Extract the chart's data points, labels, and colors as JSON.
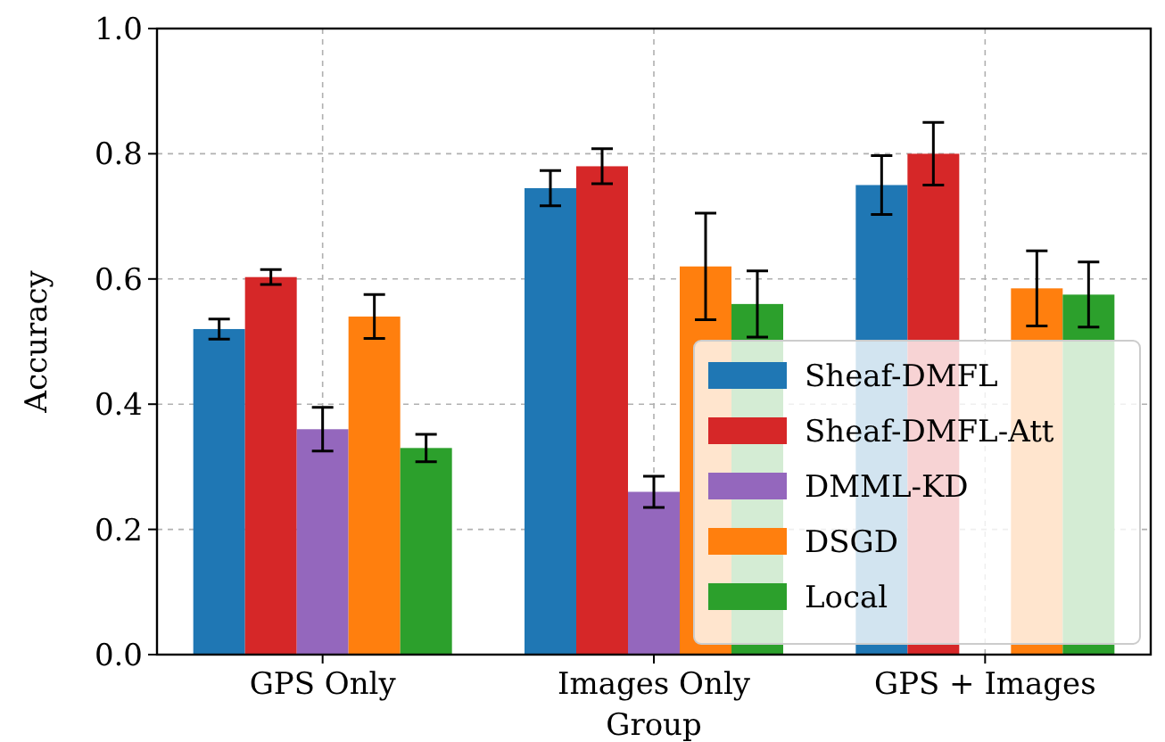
{
  "chart_data": {
    "type": "bar",
    "xlabel": "Group",
    "ylabel": "Accuracy",
    "categories": [
      "GPS Only",
      "Images Only",
      "GPS + Images"
    ],
    "series": [
      {
        "name": "Sheaf-DMFL",
        "color": "#1f77b4",
        "values": [
          0.52,
          0.745,
          0.75
        ],
        "errors": [
          0.016,
          0.028,
          0.047
        ]
      },
      {
        "name": "Sheaf-DMFL-Att",
        "color": "#d62728",
        "values": [
          0.603,
          0.78,
          0.8
        ],
        "errors": [
          0.012,
          0.028,
          0.05
        ]
      },
      {
        "name": "DMML-KD",
        "color": "#9467bd",
        "values": [
          0.36,
          0.26,
          null
        ],
        "errors": [
          0.035,
          0.025,
          null
        ]
      },
      {
        "name": "DSGD",
        "color": "#ff7f0e",
        "values": [
          0.54,
          0.62,
          0.585
        ],
        "errors": [
          0.035,
          0.085,
          0.06
        ]
      },
      {
        "name": "Local",
        "color": "#2ca02c",
        "values": [
          0.33,
          0.56,
          0.575
        ],
        "errors": [
          0.022,
          0.053,
          0.052
        ]
      }
    ],
    "ylim": [
      0,
      1
    ],
    "yticks": [
      {
        "value": 0,
        "label": "0.0"
      },
      {
        "value": 0.2,
        "label": "0.2"
      },
      {
        "value": 0.4,
        "label": "0.4"
      },
      {
        "value": 0.6,
        "label": "0.6"
      },
      {
        "value": 0.8,
        "label": "0.8"
      },
      {
        "value": 1,
        "label": "1.0"
      }
    ],
    "grid": true,
    "legend": "bottom right"
  }
}
